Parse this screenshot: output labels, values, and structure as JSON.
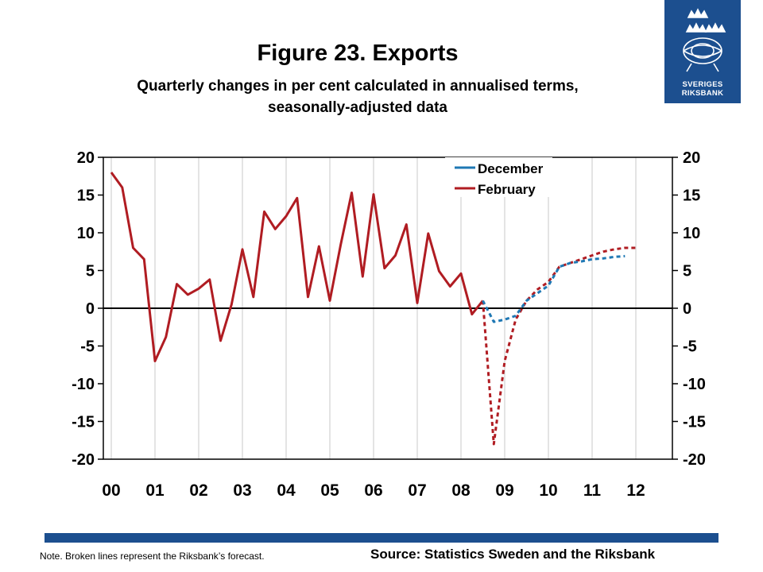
{
  "header": {
    "title": "Figure 23. Exports",
    "subtitle_line1": "Quarterly changes in per cent calculated in annualised terms,",
    "subtitle_line2": "seasonally-adjusted data"
  },
  "logo": {
    "line1": "SVERIGES",
    "line2": "RIKSBANK"
  },
  "footer": {
    "note": "Note. Broken lines represent the Riksbank’s forecast.",
    "source": "Source: Statistics Sweden and the Riksbank"
  },
  "colors": {
    "december": "#1f78b4",
    "february": "#b01c22",
    "brand": "#1c4f8f",
    "grid": "#c8c8c8"
  },
  "chart_data": {
    "type": "line",
    "title": "Figure 23. Exports",
    "xlabel": "",
    "ylabel": "",
    "ylim": [
      -20,
      20
    ],
    "yticks": [
      20,
      15,
      10,
      5,
      0,
      -5,
      -10,
      -15,
      -20
    ],
    "xlim": [
      2000,
      2012.5
    ],
    "x_tick_labels": [
      "00",
      "01",
      "02",
      "03",
      "04",
      "05",
      "06",
      "07",
      "08",
      "09",
      "10",
      "11",
      "12"
    ],
    "grid": true,
    "legend_position": "top-center",
    "legend": [
      "December",
      "February"
    ],
    "series": [
      {
        "name": "February",
        "color": "#b01c22",
        "style": "solid",
        "x": [
          2000.0,
          2000.25,
          2000.5,
          2000.75,
          2001.0,
          2001.25,
          2001.5,
          2001.75,
          2002.0,
          2002.25,
          2002.5,
          2002.75,
          2003.0,
          2003.25,
          2003.5,
          2003.75,
          2004.0,
          2004.25,
          2004.5,
          2004.75,
          2005.0,
          2005.25,
          2005.5,
          2005.75,
          2006.0,
          2006.25,
          2006.5,
          2006.75,
          2007.0,
          2007.25,
          2007.5,
          2007.75,
          2008.0,
          2008.25,
          2008.5
        ],
        "values": [
          18.0,
          16.0,
          8.0,
          6.5,
          -7.0,
          -3.8,
          3.2,
          1.8,
          2.6,
          3.8,
          -4.3,
          0.5,
          7.8,
          1.5,
          12.8,
          10.5,
          12.2,
          14.6,
          1.5,
          8.2,
          1.0,
          8.5,
          15.3,
          4.2,
          15.1,
          5.3,
          7.0,
          11.1,
          0.7,
          9.9,
          4.9,
          2.9,
          4.6,
          -0.8,
          1.0
        ]
      },
      {
        "name": "February forecast",
        "color": "#b01c22",
        "style": "dashed",
        "x": [
          2008.5,
          2008.75,
          2009.0,
          2009.25,
          2009.5,
          2009.75,
          2010.0,
          2010.25,
          2010.5,
          2010.75,
          2011.0,
          2011.25,
          2011.5,
          2011.75,
          2012.0
        ],
        "values": [
          1.0,
          -18.0,
          -7.0,
          -1.5,
          1.0,
          2.5,
          3.5,
          5.5,
          6.0,
          6.5,
          7.0,
          7.5,
          7.8,
          8.0,
          8.0
        ]
      },
      {
        "name": "December forecast",
        "color": "#1f78b4",
        "style": "dashed",
        "x": [
          2008.5,
          2008.75,
          2009.0,
          2009.25,
          2009.5,
          2009.75,
          2010.0,
          2010.25,
          2010.5,
          2010.75,
          2011.0,
          2011.25,
          2011.5,
          2011.75
        ],
        "values": [
          1.0,
          -1.8,
          -1.5,
          -1.0,
          1.0,
          2.0,
          3.0,
          5.5,
          6.0,
          6.2,
          6.5,
          6.6,
          6.8,
          6.9
        ]
      }
    ]
  }
}
